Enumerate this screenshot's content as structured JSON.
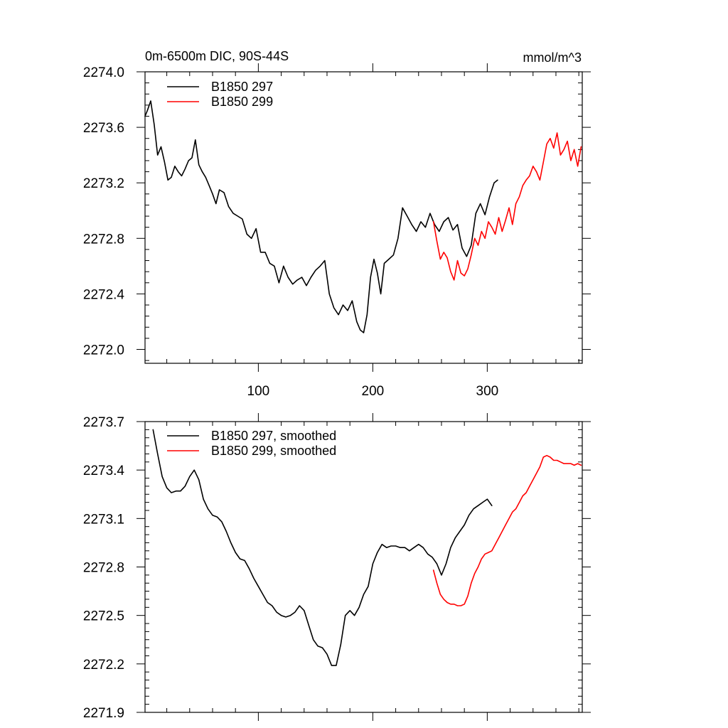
{
  "chart_data": [
    {
      "type": "line",
      "title_left": "0m-6500m DIC, 90S-44S",
      "title_right": "mmol/m^3",
      "xlim": [
        1,
        383
      ],
      "ylim": [
        2271.9,
        2274.0
      ],
      "x_major_ticks": [
        100,
        200,
        300
      ],
      "x_tick_labels": [
        "100",
        "200",
        "300"
      ],
      "y_major_ticks": [
        2272.0,
        2272.4,
        2272.8,
        2273.2,
        2273.6,
        2274.0
      ],
      "y_tick_labels": [
        "2272.0",
        "2272.4",
        "2272.8",
        "2273.2",
        "2273.6",
        "2274.0"
      ],
      "legend_position": "top-left",
      "series": [
        {
          "name": "B1850 297",
          "color": "#000000",
          "x": [
            1,
            3,
            6,
            9,
            12,
            15,
            18,
            21,
            24,
            27,
            30,
            33,
            36,
            39,
            42,
            45,
            48,
            51,
            54,
            57,
            60,
            63,
            66,
            70,
            74,
            78,
            82,
            86,
            90,
            94,
            98,
            102,
            106,
            110,
            114,
            118,
            122,
            126,
            130,
            134,
            138,
            142,
            146,
            150,
            154,
            158,
            162,
            166,
            170,
            174,
            178,
            182,
            186,
            189,
            192,
            195,
            198,
            201,
            204,
            207,
            210,
            214,
            218,
            222,
            226,
            230,
            234,
            238,
            242,
            246,
            250,
            254,
            258,
            262,
            266,
            270,
            274,
            278,
            282,
            286,
            290,
            294,
            298,
            302,
            306,
            309
          ],
          "y": [
            2273.68,
            2273.72,
            2273.79,
            2273.62,
            2273.4,
            2273.46,
            2273.35,
            2273.22,
            2273.24,
            2273.32,
            2273.28,
            2273.25,
            2273.3,
            2273.36,
            2273.38,
            2273.51,
            2273.33,
            2273.28,
            2273.24,
            2273.18,
            2273.12,
            2273.05,
            2273.15,
            2273.13,
            2273.03,
            2272.98,
            2272.96,
            2272.94,
            2272.83,
            2272.8,
            2272.87,
            2272.7,
            2272.7,
            2272.62,
            2272.6,
            2272.48,
            2272.6,
            2272.52,
            2272.47,
            2272.5,
            2272.52,
            2272.46,
            2272.52,
            2272.57,
            2272.6,
            2272.64,
            2272.4,
            2272.3,
            2272.25,
            2272.32,
            2272.28,
            2272.35,
            2272.2,
            2272.14,
            2272.12,
            2272.25,
            2272.52,
            2272.65,
            2272.55,
            2272.4,
            2272.62,
            2272.65,
            2272.68,
            2272.8,
            2273.02,
            2272.96,
            2272.9,
            2272.85,
            2272.92,
            2272.88,
            2272.98,
            2272.9,
            2272.85,
            2272.92,
            2272.95,
            2272.86,
            2272.9,
            2272.73,
            2272.67,
            2272.75,
            2272.98,
            2273.05,
            2272.97,
            2273.1,
            2273.2,
            2273.22
          ]
        },
        {
          "name": "B1850 299",
          "color": "#ff0000",
          "x": [
            253,
            256,
            259,
            262,
            265,
            268,
            271,
            274,
            277,
            280,
            283,
            286,
            289,
            292,
            295,
            298,
            301,
            304,
            307,
            310,
            313,
            316,
            319,
            322,
            325,
            328,
            331,
            334,
            337,
            340,
            343,
            346,
            349,
            352,
            355,
            358,
            361,
            364,
            367,
            370,
            373,
            376,
            379,
            382
          ],
          "y": [
            2272.92,
            2272.78,
            2272.65,
            2272.7,
            2272.66,
            2272.56,
            2272.5,
            2272.64,
            2272.55,
            2272.53,
            2272.58,
            2272.68,
            2272.8,
            2272.75,
            2272.85,
            2272.8,
            2272.92,
            2272.88,
            2272.83,
            2272.95,
            2272.85,
            2272.93,
            2273.02,
            2272.9,
            2273.05,
            2273.1,
            2273.18,
            2273.22,
            2273.25,
            2273.32,
            2273.28,
            2273.22,
            2273.35,
            2273.48,
            2273.52,
            2273.45,
            2273.56,
            2273.4,
            2273.44,
            2273.5,
            2273.36,
            2273.44,
            2273.32,
            2273.46
          ]
        }
      ]
    },
    {
      "type": "line",
      "xlim": [
        1,
        383
      ],
      "ylim": [
        2271.9,
        2273.7
      ],
      "x_major_ticks": [
        100,
        200,
        300
      ],
      "y_major_ticks": [
        2271.9,
        2272.2,
        2272.5,
        2272.8,
        2273.1,
        2273.4,
        2273.7
      ],
      "y_tick_labels": [
        "2271.9",
        "2272.2",
        "2272.5",
        "2272.8",
        "2273.1",
        "2273.4",
        "2273.7"
      ],
      "legend_position": "top-left",
      "series": [
        {
          "name": "B1850 297, smoothed",
          "color": "#000000",
          "x": [
            8,
            12,
            16,
            20,
            24,
            28,
            32,
            36,
            40,
            44,
            48,
            52,
            56,
            60,
            64,
            68,
            72,
            76,
            80,
            84,
            88,
            92,
            96,
            100,
            104,
            108,
            112,
            116,
            120,
            124,
            128,
            132,
            136,
            140,
            144,
            148,
            152,
            156,
            160,
            164,
            168,
            172,
            176,
            180,
            184,
            188,
            192,
            196,
            200,
            204,
            208,
            212,
            216,
            220,
            224,
            228,
            232,
            236,
            240,
            244,
            248,
            252,
            256,
            260,
            264,
            268,
            272,
            276,
            280,
            284,
            288,
            292,
            296,
            300,
            304
          ],
          "y": [
            2273.65,
            2273.5,
            2273.36,
            2273.29,
            2273.26,
            2273.27,
            2273.27,
            2273.3,
            2273.36,
            2273.4,
            2273.34,
            2273.22,
            2273.16,
            2273.12,
            2273.11,
            2273.08,
            2273.02,
            2272.95,
            2272.89,
            2272.85,
            2272.84,
            2272.79,
            2272.73,
            2272.68,
            2272.63,
            2272.58,
            2272.56,
            2272.52,
            2272.5,
            2272.49,
            2272.5,
            2272.52,
            2272.56,
            2272.53,
            2272.44,
            2272.35,
            2272.31,
            2272.3,
            2272.26,
            2272.19,
            2272.19,
            2272.32,
            2272.5,
            2272.53,
            2272.5,
            2272.55,
            2272.63,
            2272.68,
            2272.82,
            2272.89,
            2272.94,
            2272.92,
            2272.93,
            2272.93,
            2272.92,
            2272.92,
            2272.9,
            2272.92,
            2272.94,
            2272.92,
            2272.88,
            2272.86,
            2272.82,
            2272.75,
            2272.82,
            2272.92,
            2272.98,
            2273.02,
            2273.06,
            2273.12,
            2273.16,
            2273.18,
            2273.2,
            2273.22,
            2273.18
          ]
        },
        {
          "name": "B1850 299, smoothed",
          "color": "#ff0000",
          "x": [
            253,
            256,
            259,
            262,
            265,
            268,
            271,
            274,
            277,
            280,
            283,
            286,
            289,
            292,
            295,
            298,
            301,
            304,
            307,
            310,
            313,
            316,
            319,
            322,
            325,
            328,
            331,
            334,
            337,
            340,
            343,
            346,
            349,
            352,
            355,
            358,
            361,
            364,
            367,
            370,
            373,
            376,
            379,
            382
          ],
          "y": [
            2272.78,
            2272.7,
            2272.63,
            2272.6,
            2272.58,
            2272.57,
            2272.57,
            2272.56,
            2272.56,
            2272.57,
            2272.62,
            2272.7,
            2272.76,
            2272.8,
            2272.85,
            2272.88,
            2272.89,
            2272.9,
            2272.94,
            2272.98,
            2273.02,
            2273.06,
            2273.1,
            2273.14,
            2273.16,
            2273.2,
            2273.24,
            2273.26,
            2273.3,
            2273.34,
            2273.38,
            2273.42,
            2273.48,
            2273.49,
            2273.48,
            2273.46,
            2273.46,
            2273.45,
            2273.44,
            2273.44,
            2273.44,
            2273.43,
            2273.44,
            2273.43
          ]
        }
      ]
    }
  ]
}
